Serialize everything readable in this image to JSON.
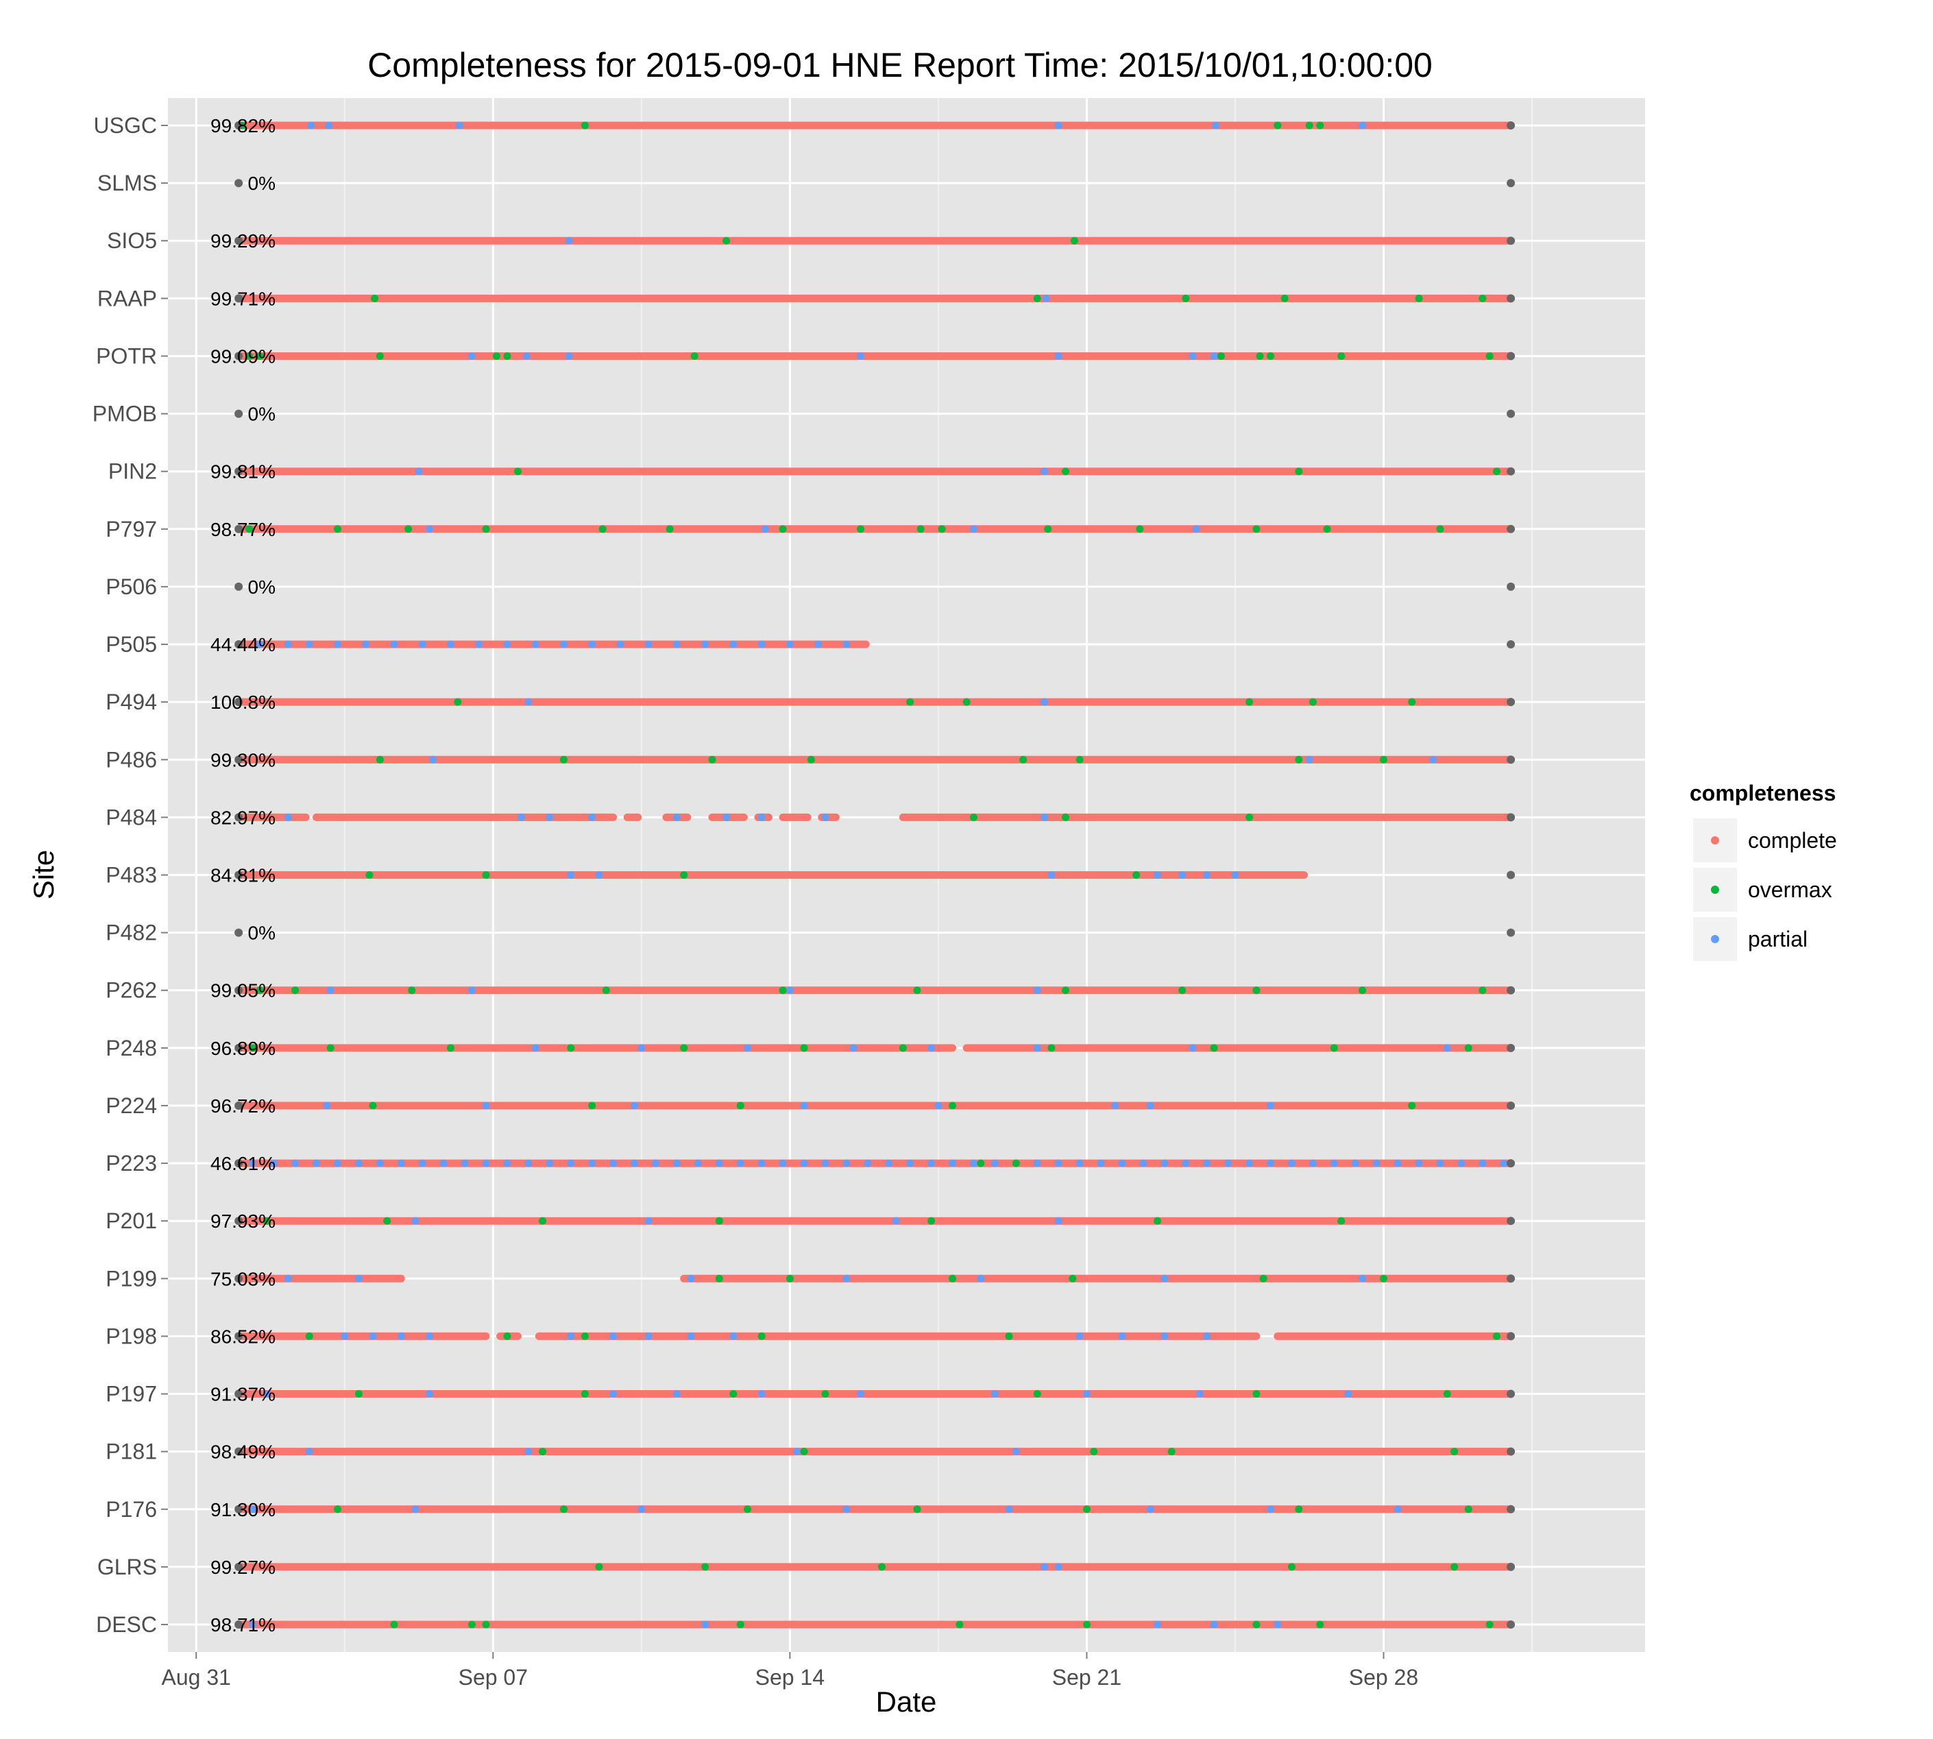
{
  "chart_data": {
    "type": "scatter",
    "title": "Completeness for  2015-09-01 HNE  Report Time:  2015/10/01,10:00:00",
    "xlabel": "Date",
    "ylabel": "Site",
    "x_ticks": [
      "Aug 31",
      "Sep 07",
      "Sep 14",
      "Sep 21",
      "Sep 28"
    ],
    "x_tick_dates": [
      "2015-08-31",
      "2015-09-07",
      "2015-09-14",
      "2015-09-21",
      "2015-09-28"
    ],
    "x_range": [
      "2015-08-30T08:00",
      "2015-10-04T04:00"
    ],
    "x_coverage": [
      "2015-09-01",
      "2015-10-01"
    ],
    "grid": true,
    "legend": {
      "title": "completeness",
      "position": "right",
      "entries": [
        {
          "label": "complete",
          "color": "#F8766D"
        },
        {
          "label": "overmax",
          "color": "#00BA38"
        },
        {
          "label": "partial",
          "color": "#619CFF"
        }
      ]
    },
    "endpoint_color": "#666666",
    "sites": [
      {
        "site": "USGC",
        "pct": "99.82%",
        "segments": [
          [
            "2015-09-01",
            "2015-10-01"
          ]
        ],
        "partial": [
          "2015-09-02T17:00",
          "2015-09-03T03:00",
          "2015-09-06T05:00",
          "2015-09-09T04:00",
          "2015-09-20T08:00",
          "2015-09-24T01:00",
          "2015-09-27T12:00"
        ],
        "overmax": [
          "2015-09-01T02:00",
          "2015-09-09T04:00",
          "2015-09-25T12:00",
          "2015-09-26T06:00",
          "2015-09-26T12:00"
        ]
      },
      {
        "site": "SLMS",
        "pct": "0%",
        "segments": [],
        "partial": [],
        "overmax": []
      },
      {
        "site": "SIO5",
        "pct": "99.29%",
        "segments": [
          [
            "2015-09-01",
            "2015-10-01"
          ]
        ],
        "partial": [
          "2015-09-08T19:00"
        ],
        "overmax": [
          "2015-09-12T12:00",
          "2015-09-20T17:00"
        ]
      },
      {
        "site": "RAAP",
        "pct": "99.71%",
        "segments": [
          [
            "2015-09-01",
            "2015-10-01"
          ]
        ],
        "partial": [
          "2015-09-20T01:00"
        ],
        "overmax": [
          "2015-09-04T05:00",
          "2015-09-19T20:00",
          "2015-09-23T08:00",
          "2015-09-25T16:00",
          "2015-09-28T20:00",
          "2015-09-30T08:00"
        ]
      },
      {
        "site": "POTR",
        "pct": "99.09%",
        "segments": [
          [
            "2015-09-01",
            "2015-10-01"
          ]
        ],
        "partial": [
          "2015-09-06T12:00",
          "2015-09-07T19:00",
          "2015-09-08T19:00",
          "2015-09-15T16:00",
          "2015-09-20T08:00",
          "2015-09-23T12:00",
          "2015-09-24T00:00"
        ],
        "overmax": [
          "2015-09-01T06:00",
          "2015-09-01T12:00",
          "2015-09-04T08:00",
          "2015-09-07T02:00",
          "2015-09-07T08:00",
          "2015-09-11T18:00",
          "2015-09-24T04:00",
          "2015-09-25T02:00",
          "2015-09-25T08:00",
          "2015-09-27T00:00",
          "2015-09-30T12:00"
        ]
      },
      {
        "site": "PMOB",
        "pct": "0%",
        "segments": [],
        "partial": [],
        "overmax": []
      },
      {
        "site": "PIN2",
        "pct": "99.81%",
        "segments": [
          [
            "2015-09-01",
            "2015-10-01"
          ]
        ],
        "partial": [
          "2015-09-05T06:00",
          "2015-09-20T00:00"
        ],
        "overmax": [
          "2015-09-07T14:00",
          "2015-09-20T12:00",
          "2015-09-26T00:00",
          "2015-09-30T16:00"
        ]
      },
      {
        "site": "P797",
        "pct": "98.77%",
        "segments": [
          [
            "2015-09-01",
            "2015-10-01"
          ]
        ],
        "partial": [
          "2015-09-05T12:00",
          "2015-09-13T10:00",
          "2015-09-18T08:00",
          "2015-09-23T14:00"
        ],
        "overmax": [
          "2015-09-01T06:00",
          "2015-09-03T08:00",
          "2015-09-05T00:00",
          "2015-09-06T20:00",
          "2015-09-09T14:00",
          "2015-09-11T04:00",
          "2015-09-13T20:00",
          "2015-09-15T16:00",
          "2015-09-17T02:00",
          "2015-09-17T14:00",
          "2015-09-20T02:00",
          "2015-09-22T06:00",
          "2015-09-25T00:00",
          "2015-09-26T16:00",
          "2015-09-29T08:00"
        ]
      },
      {
        "site": "P506",
        "pct": "0%",
        "segments": [],
        "partial": [],
        "overmax": []
      },
      {
        "site": "P505",
        "pct": "44.44%",
        "segments": [
          [
            "2015-09-01",
            "2015-09-15T19:00"
          ]
        ],
        "partial": [
          "2015-09-01T12:00",
          "2015-09-02T04:00",
          "2015-09-02T16:00",
          "2015-09-03T08:00",
          "2015-09-04T00:00",
          "2015-09-04T16:00",
          "2015-09-05T08:00",
          "2015-09-06T00:00",
          "2015-09-06T16:00",
          "2015-09-07T08:00",
          "2015-09-08T00:00",
          "2015-09-08T16:00",
          "2015-09-09T08:00",
          "2015-09-10T00:00",
          "2015-09-10T16:00",
          "2015-09-11T08:00",
          "2015-09-12T00:00",
          "2015-09-12T16:00",
          "2015-09-13T08:00",
          "2015-09-14T00:00",
          "2015-09-14T16:00",
          "2015-09-15T08:00"
        ],
        "overmax": []
      },
      {
        "site": "P494",
        "pct": "100.8%",
        "segments": [
          [
            "2015-09-01",
            "2015-10-01"
          ]
        ],
        "partial": [
          "2015-09-07T20:00",
          "2015-09-20T00:00"
        ],
        "overmax": [
          "2015-09-06T04:00",
          "2015-09-16T20:00",
          "2015-09-18T04:00",
          "2015-09-24T20:00",
          "2015-09-26T08:00",
          "2015-09-28T16:00"
        ]
      },
      {
        "site": "P486",
        "pct": "99.30%",
        "segments": [
          [
            "2015-09-01",
            "2015-10-01"
          ]
        ],
        "partial": [
          "2015-09-05T14:00",
          "2015-09-26T06:00",
          "2015-09-29T04:00"
        ],
        "overmax": [
          "2015-09-04T08:00",
          "2015-09-08T16:00",
          "2015-09-12T04:00",
          "2015-09-14T12:00",
          "2015-09-19T12:00",
          "2015-09-20T20:00",
          "2015-09-26T00:00",
          "2015-09-28T00:00"
        ]
      },
      {
        "site": "P484",
        "pct": "82.97%",
        "segments": [
          [
            "2015-09-01",
            "2015-09-02T14:00"
          ],
          [
            "2015-09-02T20:00",
            "2015-09-09T20:00"
          ],
          [
            "2015-09-10T04:00",
            "2015-09-10T10:00"
          ],
          [
            "2015-09-11T02:00",
            "2015-09-11T14:00"
          ],
          [
            "2015-09-12T04:00",
            "2015-09-12T22:00"
          ],
          [
            "2015-09-13T06:00",
            "2015-09-13T12:00"
          ],
          [
            "2015-09-13T20:00",
            "2015-09-14T10:00"
          ],
          [
            "2015-09-14T18:00",
            "2015-09-15T02:00"
          ],
          [
            "2015-09-16T16:00",
            "2015-10-01"
          ]
        ],
        "partial": [
          "2015-09-02T04:00",
          "2015-09-07T16:00",
          "2015-09-08T08:00",
          "2015-09-09T08:00",
          "2015-09-11T08:00",
          "2015-09-12T12:00",
          "2015-09-13T08:00",
          "2015-09-14T20:00",
          "2015-09-20T00:00"
        ],
        "overmax": [
          "2015-09-18T08:00",
          "2015-09-20T12:00",
          "2015-09-24T20:00"
        ]
      },
      {
        "site": "P483",
        "pct": "84.81%",
        "segments": [
          [
            "2015-09-01",
            "2015-09-26T03:00"
          ]
        ],
        "partial": [
          "2015-09-08T20:00",
          "2015-09-09T12:00",
          "2015-09-20T04:00",
          "2015-09-22T16:00",
          "2015-09-23T06:00",
          "2015-09-23T20:00",
          "2015-09-24T12:00"
        ],
        "overmax": [
          "2015-09-04T02:00",
          "2015-09-06T20:00",
          "2015-09-11T12:00",
          "2015-09-22T04:00"
        ]
      },
      {
        "site": "P482",
        "pct": "0%",
        "segments": [],
        "partial": [],
        "overmax": []
      },
      {
        "site": "P262",
        "pct": "99.05%",
        "segments": [
          [
            "2015-09-01",
            "2015-10-01"
          ]
        ],
        "partial": [
          "2015-09-03T04:00",
          "2015-09-06T12:00",
          "2015-09-14T00:00",
          "2015-09-19T20:00"
        ],
        "overmax": [
          "2015-09-01T12:00",
          "2015-09-02T08:00",
          "2015-09-05T02:00",
          "2015-09-09T16:00",
          "2015-09-13T20:00",
          "2015-09-17T00:00",
          "2015-09-20T12:00",
          "2015-09-23T06:00",
          "2015-09-25T00:00",
          "2015-09-27T12:00",
          "2015-09-30T08:00"
        ]
      },
      {
        "site": "P248",
        "pct": "96.89%",
        "segments": [
          [
            "2015-09-01",
            "2015-09-17T20:00"
          ],
          [
            "2015-09-18T04:00",
            "2015-10-01"
          ]
        ],
        "partial": [
          "2015-09-08T00:00",
          "2015-09-10T12:00",
          "2015-09-13T00:00",
          "2015-09-15T12:00",
          "2015-09-17T08:00",
          "2015-09-19T20:00",
          "2015-09-23T12:00",
          "2015-09-29T12:00"
        ],
        "overmax": [
          "2015-09-01T08:00",
          "2015-09-03T04:00",
          "2015-09-06T00:00",
          "2015-09-08T20:00",
          "2015-09-11T12:00",
          "2015-09-14T08:00",
          "2015-09-16T16:00",
          "2015-09-20T04:00",
          "2015-09-24T00:00",
          "2015-09-26T20:00",
          "2015-09-30T00:00"
        ]
      },
      {
        "site": "P224",
        "pct": "96.72%",
        "segments": [
          [
            "2015-09-01",
            "2015-10-01"
          ]
        ],
        "partial": [
          "2015-09-03T02:00",
          "2015-09-06T20:00",
          "2015-09-10T08:00",
          "2015-09-14T08:00",
          "2015-09-17T12:00",
          "2015-09-21T16:00",
          "2015-09-22T12:00",
          "2015-09-25T08:00"
        ],
        "overmax": [
          "2015-09-04T04:00",
          "2015-09-09T08:00",
          "2015-09-12T20:00",
          "2015-09-17T20:00",
          "2015-09-28T16:00"
        ]
      },
      {
        "site": "P223",
        "pct": "46.61%",
        "segments": [
          [
            "2015-09-01",
            "2015-10-01"
          ]
        ],
        "partial": [
          "2015-09-01T08:00",
          "2015-09-01T20:00",
          "2015-09-02T08:00",
          "2015-09-02T20:00",
          "2015-09-03T08:00",
          "2015-09-03T20:00",
          "2015-09-04T08:00",
          "2015-09-04T20:00",
          "2015-09-05T08:00",
          "2015-09-05T20:00",
          "2015-09-06T08:00",
          "2015-09-06T20:00",
          "2015-09-07T08:00",
          "2015-09-07T20:00",
          "2015-09-08T08:00",
          "2015-09-08T20:00",
          "2015-09-09T08:00",
          "2015-09-09T20:00",
          "2015-09-10T08:00",
          "2015-09-10T20:00",
          "2015-09-11T08:00",
          "2015-09-11T20:00",
          "2015-09-12T08:00",
          "2015-09-12T20:00",
          "2015-09-13T08:00",
          "2015-09-13T20:00",
          "2015-09-14T08:00",
          "2015-09-14T20:00",
          "2015-09-15T08:00",
          "2015-09-15T20:00",
          "2015-09-16T08:00",
          "2015-09-16T20:00",
          "2015-09-17T08:00",
          "2015-09-17T20:00",
          "2015-09-18T08:00",
          "2015-09-18T20:00",
          "2015-09-19T08:00",
          "2015-09-19T20:00",
          "2015-09-20T08:00",
          "2015-09-20T20:00",
          "2015-09-21T08:00",
          "2015-09-21T20:00",
          "2015-09-22T08:00",
          "2015-09-22T20:00",
          "2015-09-23T08:00",
          "2015-09-23T20:00",
          "2015-09-24T08:00",
          "2015-09-24T20:00",
          "2015-09-25T08:00",
          "2015-09-25T20:00",
          "2015-09-26T08:00",
          "2015-09-26T20:00",
          "2015-09-27T08:00",
          "2015-09-27T20:00",
          "2015-09-28T08:00",
          "2015-09-28T20:00",
          "2015-09-29T08:00",
          "2015-09-29T20:00",
          "2015-09-30T08:00",
          "2015-09-30T20:00"
        ],
        "overmax": [
          "2015-09-18T12:00",
          "2015-09-19T08:00"
        ]
      },
      {
        "site": "P201",
        "pct": "97.93%",
        "segments": [
          [
            "2015-09-01",
            "2015-10-01"
          ]
        ],
        "partial": [
          "2015-09-05T04:00",
          "2015-09-10T16:00",
          "2015-09-16T12:00",
          "2015-09-20T08:00"
        ],
        "overmax": [
          "2015-09-01T16:00",
          "2015-09-04T12:00",
          "2015-09-08T04:00",
          "2015-09-12T08:00",
          "2015-09-17T08:00",
          "2015-09-22T16:00",
          "2015-09-27T00:00"
        ]
      },
      {
        "site": "P199",
        "pct": "75.03%",
        "segments": [
          [
            "2015-09-01",
            "2015-09-04T20:00"
          ],
          [
            "2015-09-11T12:00",
            "2015-10-01"
          ]
        ],
        "partial": [
          "2015-09-02T04:00",
          "2015-09-03T20:00",
          "2015-09-11T16:00",
          "2015-09-15T08:00",
          "2015-09-18T12:00",
          "2015-09-22T20:00",
          "2015-09-27T12:00"
        ],
        "overmax": [
          "2015-09-12T08:00",
          "2015-09-14T00:00",
          "2015-09-17T20:00",
          "2015-09-20T16:00",
          "2015-09-25T04:00",
          "2015-09-28T00:00"
        ]
      },
      {
        "site": "P198",
        "pct": "86.52%",
        "segments": [
          [
            "2015-09-01",
            "2015-09-06T20:00"
          ],
          [
            "2015-09-07T04:00",
            "2015-09-07T14:00"
          ],
          [
            "2015-09-08T02:00",
            "2015-09-25T00:00"
          ],
          [
            "2015-09-25T12:00",
            "2015-10-01"
          ]
        ],
        "partial": [
          "2015-09-03T12:00",
          "2015-09-04T04:00",
          "2015-09-04T20:00",
          "2015-09-05T12:00",
          "2015-09-08T20:00",
          "2015-09-09T20:00",
          "2015-09-10T16:00",
          "2015-09-11T16:00",
          "2015-09-12T16:00",
          "2015-09-20T20:00",
          "2015-09-21T20:00",
          "2015-09-22T20:00",
          "2015-09-23T20:00"
        ],
        "overmax": [
          "2015-09-02T16:00",
          "2015-09-07T08:00",
          "2015-09-09T04:00",
          "2015-09-13T08:00",
          "2015-09-19T04:00",
          "2015-09-30T16:00"
        ]
      },
      {
        "site": "P197",
        "pct": "91.37%",
        "segments": [
          [
            "2015-09-01",
            "2015-10-01"
          ]
        ],
        "partial": [
          "2015-09-01T16:00",
          "2015-09-05T12:00",
          "2015-09-09T20:00",
          "2015-09-11T08:00",
          "2015-09-13T08:00",
          "2015-09-15T16:00",
          "2015-09-18T20:00",
          "2015-09-21T00:00",
          "2015-09-23T16:00",
          "2015-09-27T04:00"
        ],
        "overmax": [
          "2015-09-03T20:00",
          "2015-09-09T04:00",
          "2015-09-12T16:00",
          "2015-09-14T20:00",
          "2015-09-19T20:00",
          "2015-09-25T00:00",
          "2015-09-29T12:00"
        ]
      },
      {
        "site": "P181",
        "pct": "98.49%",
        "segments": [
          [
            "2015-09-01",
            "2015-10-01"
          ]
        ],
        "partial": [
          "2015-09-02T16:00",
          "2015-09-07T20:00",
          "2015-09-14T04:00",
          "2015-09-19T08:00"
        ],
        "overmax": [
          "2015-09-08T04:00",
          "2015-09-14T08:00",
          "2015-09-21T04:00",
          "2015-09-23T00:00",
          "2015-09-29T16:00"
        ]
      },
      {
        "site": "P176",
        "pct": "91.30%",
        "segments": [
          [
            "2015-09-01",
            "2015-10-01"
          ]
        ],
        "partial": [
          "2015-09-01T08:00",
          "2015-09-05T04:00",
          "2015-09-10T12:00",
          "2015-09-15T08:00",
          "2015-09-19T04:00",
          "2015-09-22T12:00",
          "2015-09-25T08:00",
          "2015-09-28T08:00"
        ],
        "overmax": [
          "2015-09-03T08:00",
          "2015-09-08T16:00",
          "2015-09-13T00:00",
          "2015-09-17T00:00",
          "2015-09-21T00:00",
          "2015-09-26T00:00",
          "2015-09-30T00:00"
        ]
      },
      {
        "site": "GLRS",
        "pct": "99.27%",
        "segments": [
          [
            "2015-09-01",
            "2015-10-01"
          ]
        ],
        "partial": [
          "2015-09-20T00:00",
          "2015-09-20T08:00"
        ],
        "overmax": [
          "2015-09-09T12:00",
          "2015-09-12T00:00",
          "2015-09-16T04:00",
          "2015-09-25T20:00",
          "2015-09-29T16:00"
        ]
      },
      {
        "site": "DESC",
        "pct": "98.71%",
        "segments": [
          [
            "2015-09-01",
            "2015-10-01"
          ]
        ],
        "partial": [
          "2015-09-01T08:00",
          "2015-09-12T00:00",
          "2015-09-22T16:00",
          "2015-09-24T00:00",
          "2015-09-25T12:00"
        ],
        "overmax": [
          "2015-09-04T16:00",
          "2015-09-06T12:00",
          "2015-09-06T20:00",
          "2015-09-12T20:00",
          "2015-09-18T00:00",
          "2015-09-21T00:00",
          "2015-09-25T00:00",
          "2015-09-26T12:00",
          "2015-09-30T12:00"
        ]
      }
    ]
  }
}
